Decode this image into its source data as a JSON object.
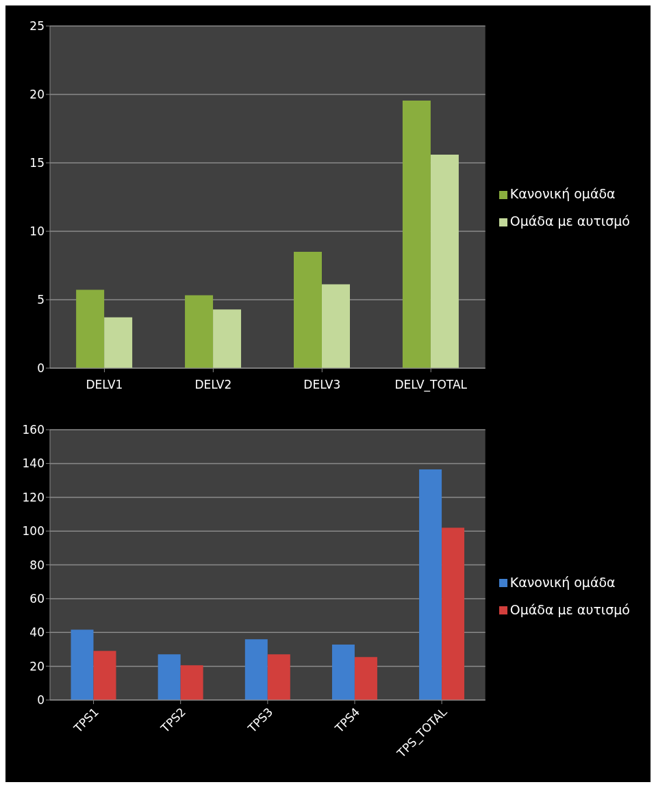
{
  "chart_data": [
    {
      "type": "bar",
      "categories": [
        "DELV1",
        "DELV2",
        "DELV3",
        "DELV_TOTAL"
      ],
      "series": [
        {
          "name": "Κανονική ομάδα",
          "color": "#8aae3e",
          "values": [
            5.73,
            5.32,
            8.5,
            19.55
          ]
        },
        {
          "name": "Ομάδα με αυτισμό",
          "color": "#c3d99a",
          "values": [
            3.71,
            4.29,
            6.12,
            15.6
          ]
        }
      ],
      "ylim": [
        0,
        25
      ],
      "yticks": [
        0,
        5,
        10,
        15,
        20,
        25
      ],
      "grid": "y",
      "legend": "right"
    },
    {
      "type": "bar",
      "categories": [
        "TPS1",
        "TPS2",
        "TPS3",
        "TPS4",
        "TPS_TOTAL"
      ],
      "series": [
        {
          "name": "Κανονική ομάδα",
          "color": "#3f7fcf",
          "values": [
            41.6,
            27,
            36,
            32.8,
            136.5
          ]
        },
        {
          "name": "Ομάδα με αυτισμό",
          "color": "#d23f3c",
          "values": [
            29.1,
            20.6,
            27,
            25.4,
            102
          ]
        }
      ],
      "ylim": [
        0,
        160
      ],
      "yticks": [
        0,
        20,
        40,
        60,
        80,
        100,
        120,
        140,
        160
      ],
      "grid": "y",
      "legend": "right"
    }
  ]
}
